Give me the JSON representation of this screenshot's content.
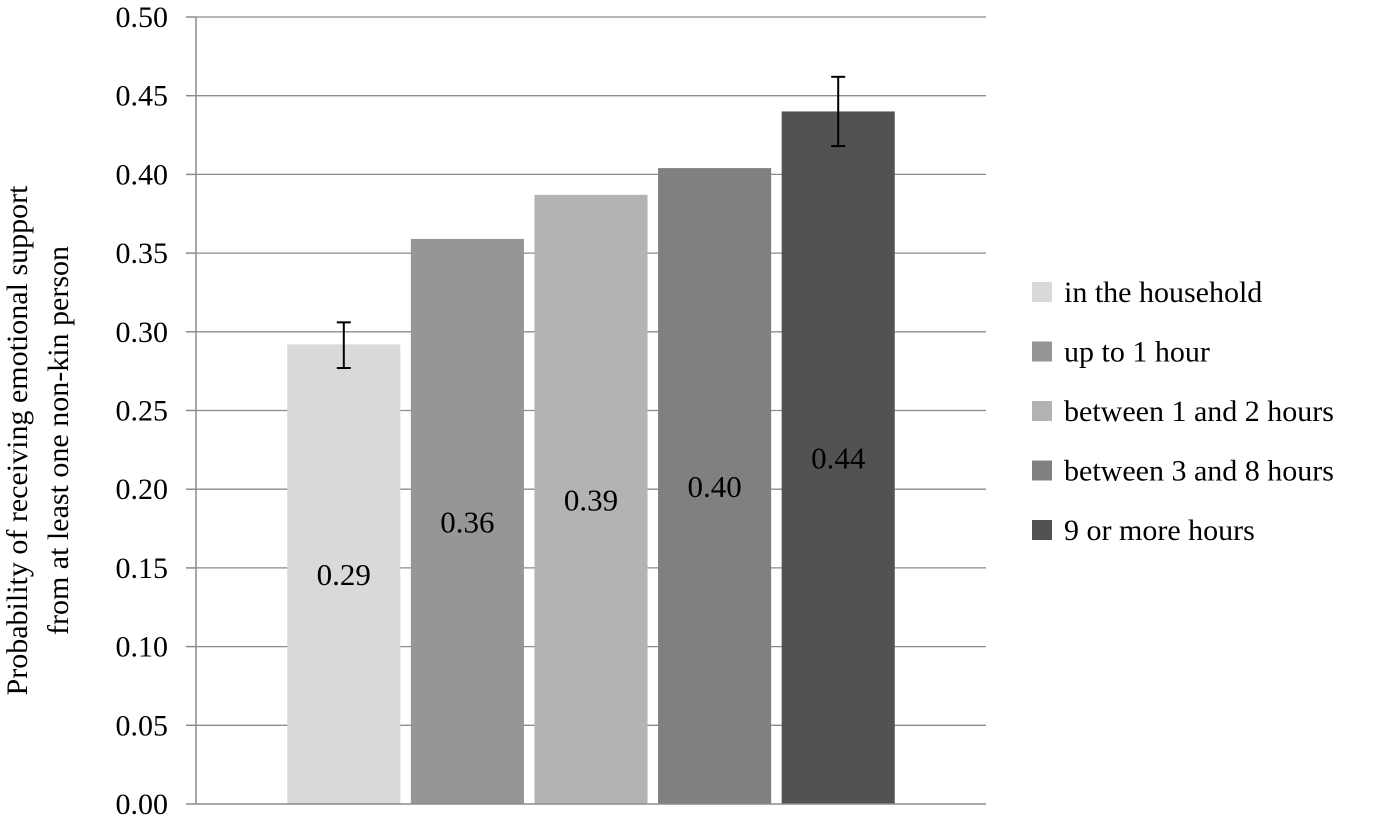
{
  "chart_data": {
    "type": "bar",
    "ylabel_lines": [
      "Probability of receiving emotional support",
      "from at least one non-kin person"
    ],
    "xlabel": "",
    "ylim": [
      0,
      0.5
    ],
    "ytick_step": 0.05,
    "grid": true,
    "legend_position": "right",
    "series": [
      {
        "name": "in the household",
        "value": 0.292,
        "label": "0.29",
        "color": "#d9d9d9",
        "error": [
          0.277,
          0.306
        ]
      },
      {
        "name": "up to 1 hour",
        "value": 0.359,
        "label": "0.36",
        "color": "#969696",
        "error": null
      },
      {
        "name": "between 1 and 2 hours",
        "value": 0.387,
        "label": "0.39",
        "color": "#b3b3b3",
        "error": null
      },
      {
        "name": "between 3 and 8 hours",
        "value": 0.404,
        "label": "0.40",
        "color": "#808080",
        "error": null
      },
      {
        "name": "9 or more hours",
        "value": 0.44,
        "label": "0.44",
        "color": "#525252",
        "error": [
          0.418,
          0.462
        ]
      }
    ]
  }
}
